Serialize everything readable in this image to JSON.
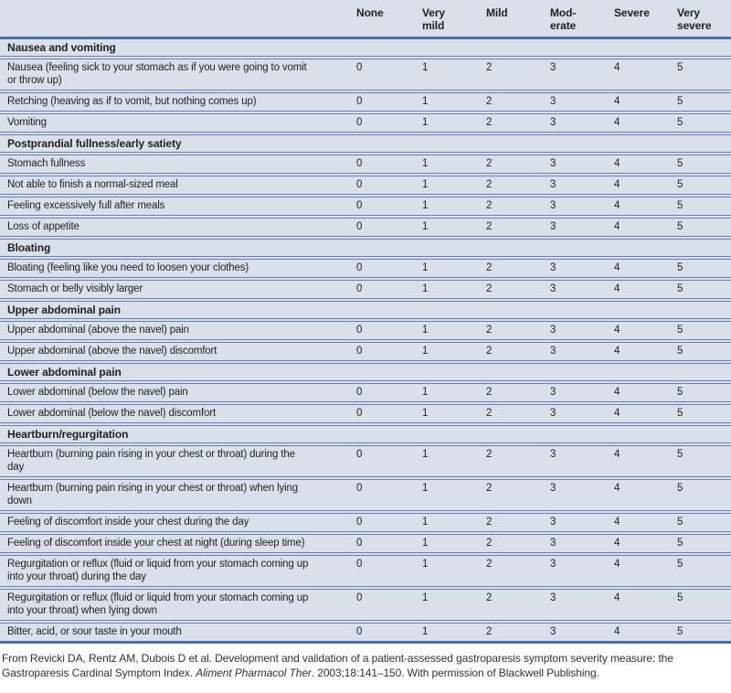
{
  "table": {
    "columns": [
      {
        "id": "none",
        "lines": [
          "None"
        ]
      },
      {
        "id": "very-mild",
        "lines": [
          "Very",
          "mild"
        ]
      },
      {
        "id": "mild",
        "lines": [
          "Mild"
        ]
      },
      {
        "id": "moderate",
        "lines": [
          "Mod-",
          "erate"
        ]
      },
      {
        "id": "severe",
        "lines": [
          "Severe"
        ]
      },
      {
        "id": "very-severe",
        "lines": [
          "Very",
          "severe"
        ]
      }
    ],
    "sections": [
      {
        "title": "Nausea and vomiting",
        "rows": [
          {
            "label": "Nausea (feeling sick to your stomach as if you were going to vomit\nor throw up)",
            "values": [
              0,
              1,
              2,
              3,
              4,
              5
            ]
          },
          {
            "label": "Retching (heaving as if to vomit, but nothing comes up)",
            "values": [
              0,
              1,
              2,
              3,
              4,
              5
            ]
          },
          {
            "label": "Vomiting",
            "values": [
              0,
              1,
              2,
              3,
              4,
              5
            ]
          }
        ]
      },
      {
        "title": "Postprandial fullness/early satiety",
        "rows": [
          {
            "label": "Stomach fullness",
            "values": [
              0,
              1,
              2,
              3,
              4,
              5
            ]
          },
          {
            "label": "Not able to finish a normal-sized meal",
            "values": [
              0,
              1,
              2,
              3,
              4,
              5
            ]
          },
          {
            "label": "Feeling excessively full after meals",
            "values": [
              0,
              1,
              2,
              3,
              4,
              5
            ]
          },
          {
            "label": "Loss of appetite",
            "values": [
              0,
              1,
              2,
              3,
              4,
              5
            ]
          }
        ]
      },
      {
        "title": "Bloating",
        "rows": [
          {
            "label": "Bloating (feeling like you need to loosen your clothes)",
            "values": [
              0,
              1,
              2,
              3,
              4,
              5
            ]
          },
          {
            "label": "Stomach or belly visibly larger",
            "values": [
              0,
              1,
              2,
              3,
              4,
              5
            ]
          }
        ]
      },
      {
        "title": "Upper abdominal pain",
        "rows": [
          {
            "label": "Upper abdominal (above the navel) pain",
            "values": [
              0,
              1,
              2,
              3,
              4,
              5
            ]
          },
          {
            "label": "Upper abdominal (above the navel) discomfort",
            "values": [
              0,
              1,
              2,
              3,
              4,
              5
            ]
          }
        ]
      },
      {
        "title": "Lower abdominal pain",
        "rows": [
          {
            "label": "Lower abdominal (below the navel) pain",
            "values": [
              0,
              1,
              2,
              3,
              4,
              5
            ]
          },
          {
            "label": "Lower abdominal (below the navel) discomfort",
            "values": [
              0,
              1,
              2,
              3,
              4,
              5
            ]
          }
        ]
      },
      {
        "title": "Heartburn/regurgitation",
        "rows": [
          {
            "label": "Heartburn (burning pain rising in your chest or throat) during the\nday",
            "values": [
              0,
              1,
              2,
              3,
              4,
              5
            ]
          },
          {
            "label": "Heartburn (burning pain rising in your chest or throat) when lying\ndown",
            "values": [
              0,
              1,
              2,
              3,
              4,
              5
            ]
          },
          {
            "label": "Feeling of discomfort inside your chest during the day",
            "values": [
              0,
              1,
              2,
              3,
              4,
              5
            ]
          },
          {
            "label": "Feeling of discomfort inside your chest at night (during sleep time)",
            "values": [
              0,
              1,
              2,
              3,
              4,
              5
            ]
          },
          {
            "label": "Regurgitation or reflux (fluid or liquid from your stomach coming up\ninto your throat) during the day",
            "values": [
              0,
              1,
              2,
              3,
              4,
              5
            ]
          },
          {
            "label": "Regurgitation or reflux (fluid or liquid from your stomach coming up\ninto your throat) when lying down",
            "values": [
              0,
              1,
              2,
              3,
              4,
              5
            ]
          },
          {
            "label": "Bitter, acid, or sour taste in your mouth",
            "values": [
              0,
              1,
              2,
              3,
              4,
              5
            ]
          }
        ]
      }
    ]
  },
  "footer": {
    "citation_part1": "From Revicki DA, Rentz AM, Dubois D et al. Development and validation of a patient-assessed gastroparesis symptom severity measure: the Gastroparesis Cardinal Symptom Index. ",
    "citation_italic": "Aliment Pharmacol Ther",
    "citation_part2": ". 2003;18:141–150. With permission of Blackwell Publishing."
  },
  "colors": {
    "table_bg": "#d9e0ea",
    "rule_blue": "#6880b2",
    "header_rule_blue": "#4e6fae",
    "text": "#1f1f1f"
  }
}
